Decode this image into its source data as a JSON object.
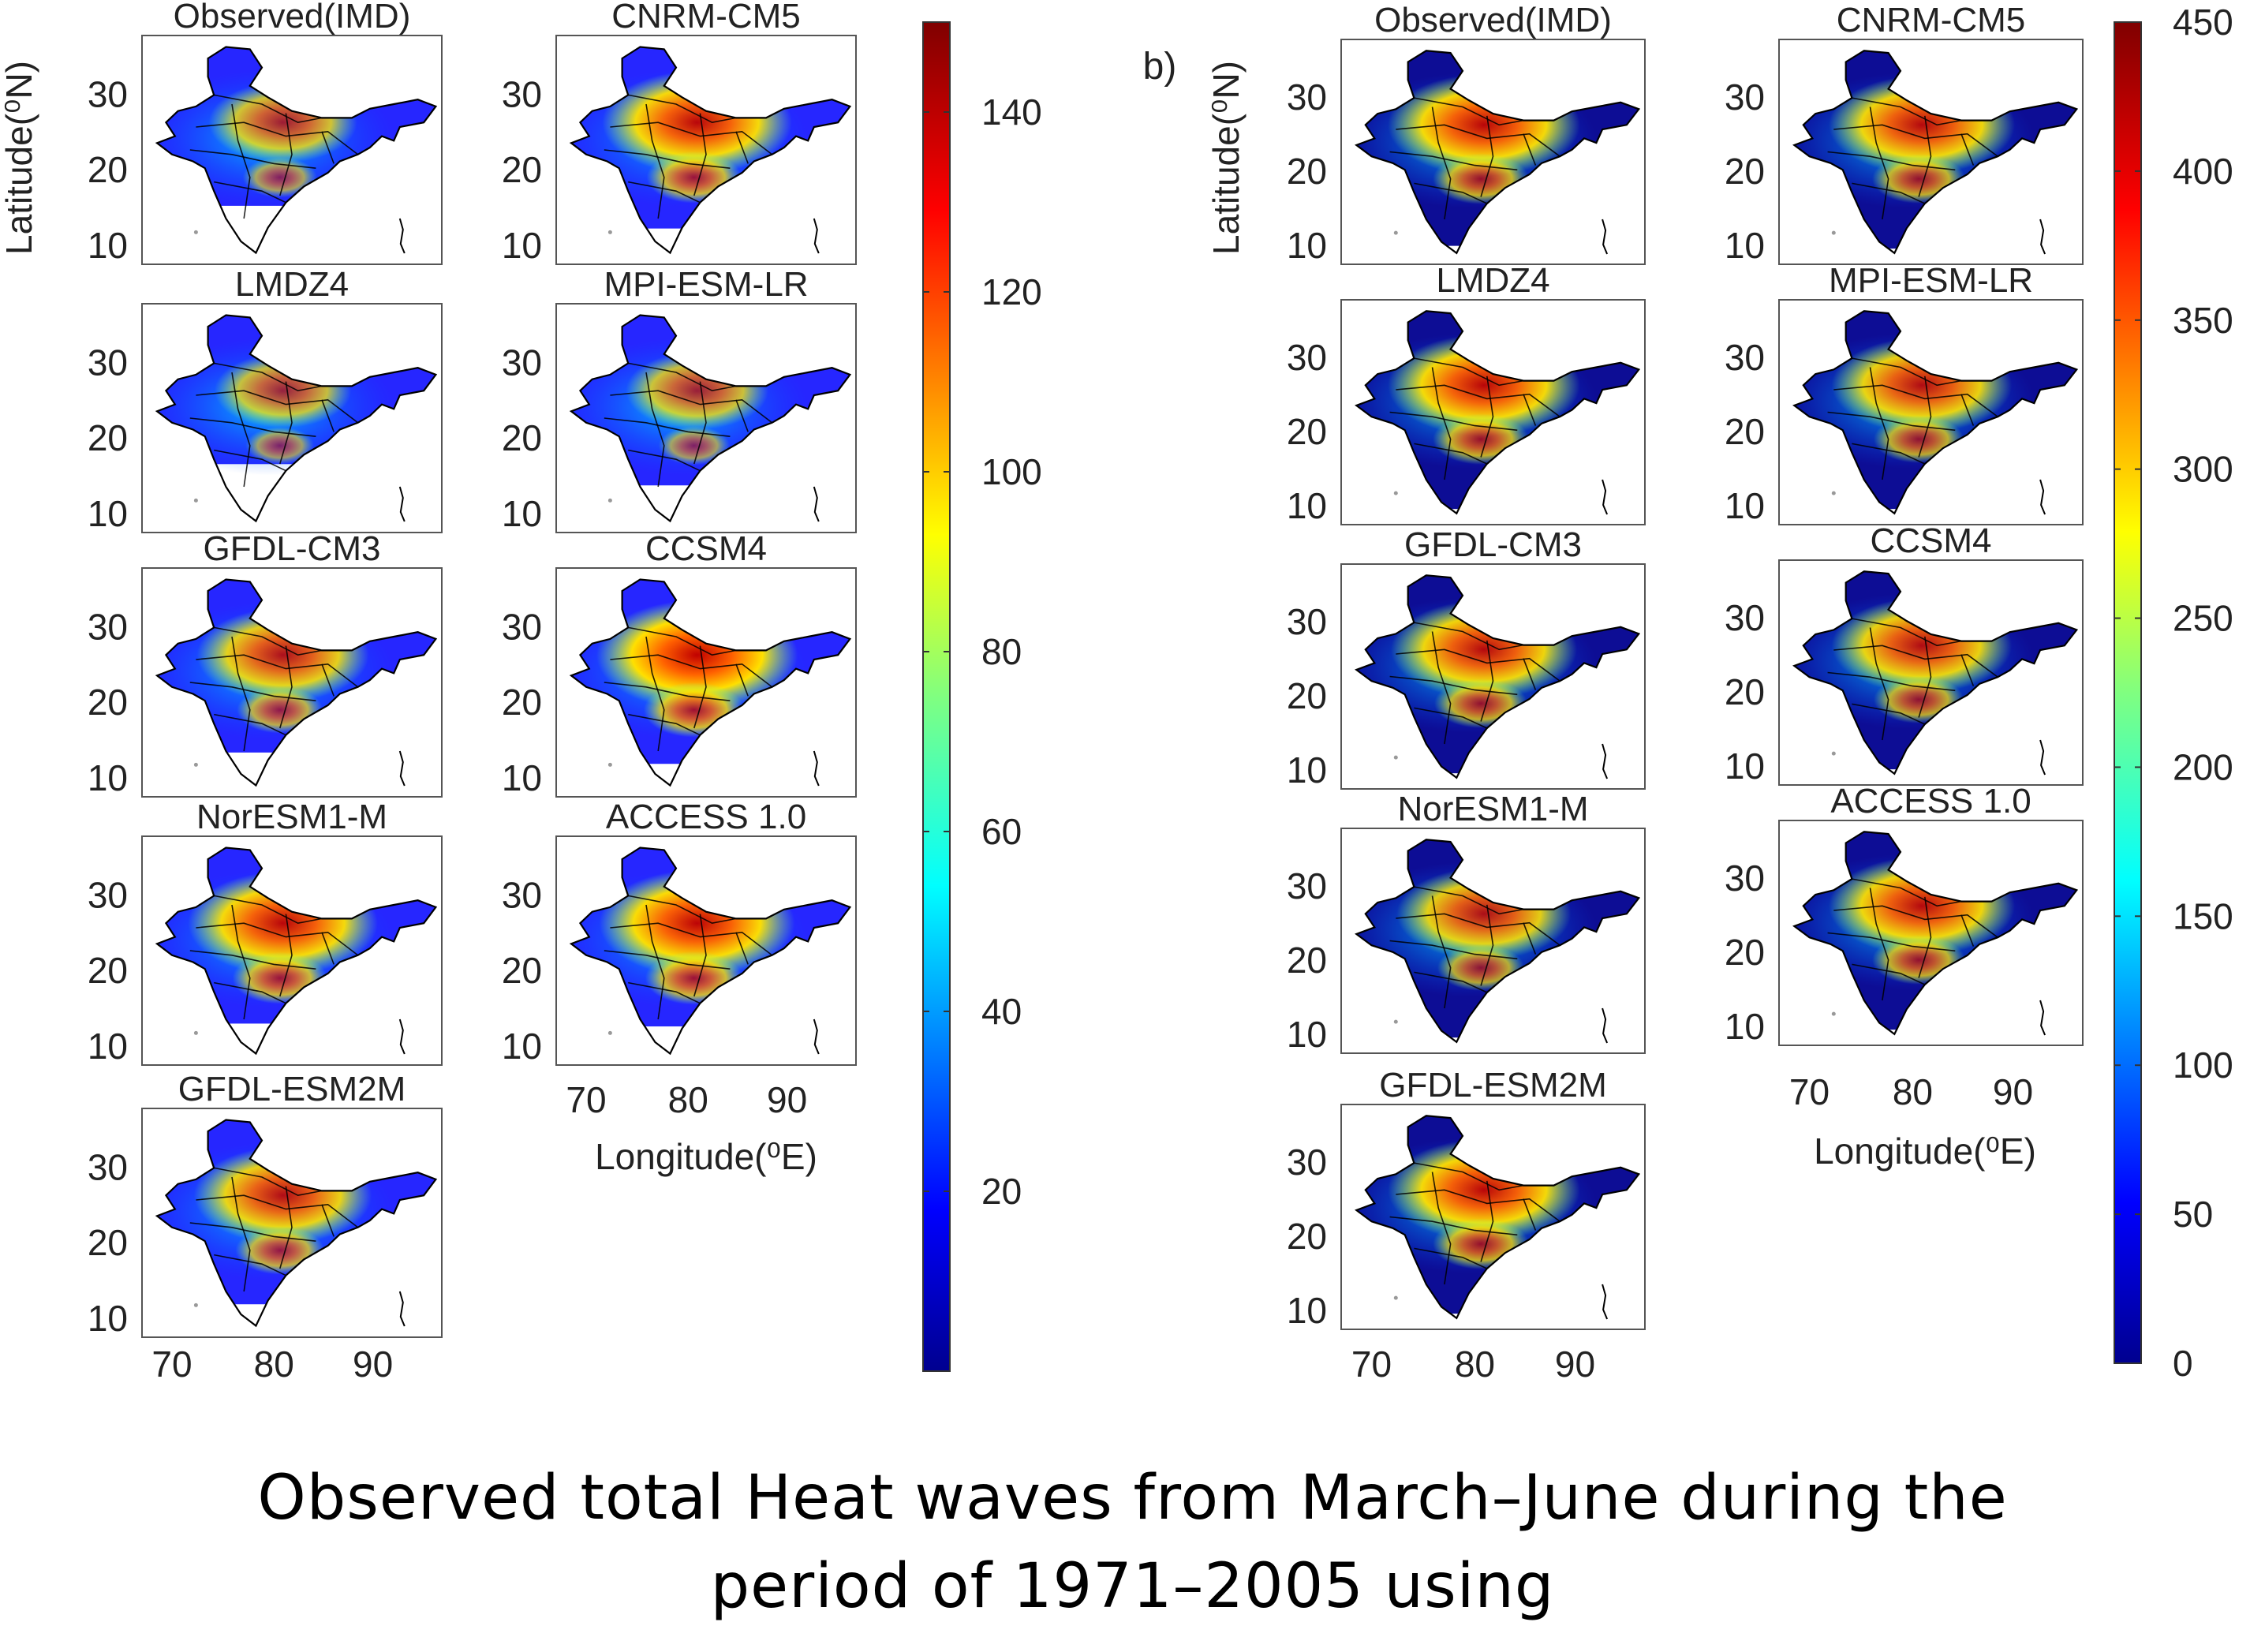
{
  "figure": {
    "panel_b_label": "b)",
    "caption_line1": "Observed total Heat waves from March–June during the",
    "caption_line2": "period of 1971–2005 using"
  },
  "axes": {
    "ylabel": "Latitude(⁰N)",
    "xlabel": "Longitude(⁰E)",
    "lat_ticks": [
      "30",
      "20",
      "10"
    ],
    "lon_ticks": [
      "70",
      "80",
      "90"
    ]
  },
  "colors": {
    "jet": [
      "#00008f",
      "#0000ff",
      "#0080ff",
      "#00ffff",
      "#80ff80",
      "#ffff00",
      "#ff8000",
      "#ff0000",
      "#800000"
    ],
    "boundary": "#000000",
    "background": "#ffffff"
  },
  "chart_data": [
    {
      "type": "heatmap",
      "panel": "a",
      "description_values": "Observed total heat waves, March-June, 1971-2005",
      "colorbar": {
        "min": 0,
        "max": 150,
        "ticks": [
          "20",
          "40",
          "60",
          "80",
          "100",
          "120",
          "140"
        ]
      },
      "maps": [
        {
          "title": "Observed(IMD)",
          "hotspot": 0.55,
          "coverage": 0.62
        },
        {
          "title": "CNRM-CM5",
          "hotspot": 0.9,
          "coverage": 0.78
        },
        {
          "title": "LMDZ4",
          "hotspot": 0.45,
          "coverage": 0.55
        },
        {
          "title": "MPI-ESM-LR",
          "hotspot": 0.5,
          "coverage": 0.7
        },
        {
          "title": "GFDL-CM3",
          "hotspot": 0.75,
          "coverage": 0.72
        },
        {
          "title": "CCSM4",
          "hotspot": 1.0,
          "coverage": 0.8
        },
        {
          "title": "NorESM1-M",
          "hotspot": 0.9,
          "coverage": 0.74
        },
        {
          "title": "ACCESS 1.0",
          "hotspot": 0.95,
          "coverage": 0.76
        },
        {
          "title": "GFDL-ESM2M",
          "hotspot": 0.8,
          "coverage": 0.8
        }
      ]
    },
    {
      "type": "heatmap",
      "panel": "b",
      "colorbar": {
        "min": 0,
        "max": 450,
        "ticks": [
          "0",
          "50",
          "100",
          "150",
          "200",
          "250",
          "300",
          "350",
          "400",
          "450"
        ]
      },
      "maps": [
        {
          "title": "Observed(IMD)",
          "hotspot": 0.9,
          "coverage": 0.9
        },
        {
          "title": "CNRM-CM5",
          "hotspot": 0.85,
          "coverage": 0.92
        },
        {
          "title": "LMDZ4",
          "hotspot": 0.9,
          "coverage": 0.92
        },
        {
          "title": "MPI-ESM-LR",
          "hotspot": 0.8,
          "coverage": 0.92
        },
        {
          "title": "GFDL-CM3",
          "hotspot": 0.85,
          "coverage": 0.92
        },
        {
          "title": "CCSM4",
          "hotspot": 0.8,
          "coverage": 0.92
        },
        {
          "title": "NorESM1-M",
          "hotspot": 0.75,
          "coverage": 0.92
        },
        {
          "title": "ACCESS 1.0",
          "hotspot": 0.85,
          "coverage": 0.92
        },
        {
          "title": "GFDL-ESM2M",
          "hotspot": 0.9,
          "coverage": 0.92
        }
      ]
    }
  ]
}
